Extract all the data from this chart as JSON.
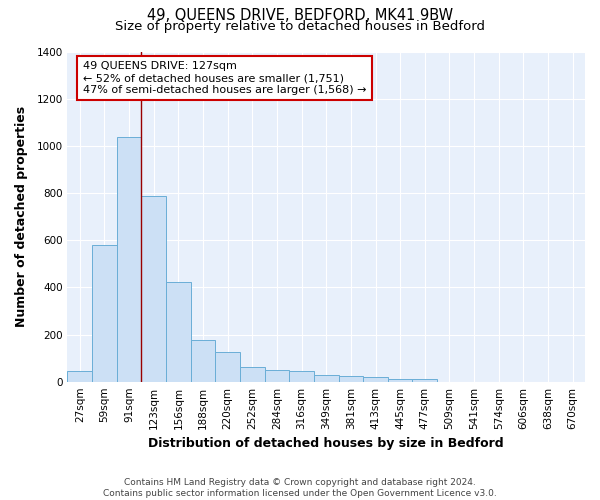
{
  "title": "49, QUEENS DRIVE, BEDFORD, MK41 9BW",
  "subtitle": "Size of property relative to detached houses in Bedford",
  "xlabel": "Distribution of detached houses by size in Bedford",
  "ylabel": "Number of detached properties",
  "categories": [
    "27sqm",
    "59sqm",
    "91sqm",
    "123sqm",
    "156sqm",
    "188sqm",
    "220sqm",
    "252sqm",
    "284sqm",
    "316sqm",
    "349sqm",
    "381sqm",
    "413sqm",
    "445sqm",
    "477sqm",
    "509sqm",
    "541sqm",
    "574sqm",
    "606sqm",
    "638sqm",
    "670sqm"
  ],
  "values": [
    47,
    578,
    1037,
    787,
    422,
    178,
    125,
    62,
    50,
    46,
    30,
    25,
    20,
    12,
    10,
    0,
    0,
    0,
    0,
    0,
    0
  ],
  "bar_color": "#cce0f5",
  "bar_edge_color": "#6aaed6",
  "vline_x_idx": 3,
  "vline_color": "#990000",
  "annotation_text": "49 QUEENS DRIVE: 127sqm\n← 52% of detached houses are smaller (1,751)\n47% of semi-detached houses are larger (1,568) →",
  "annotation_box_color": "white",
  "annotation_box_edge": "#cc0000",
  "ylim": [
    0,
    1400
  ],
  "yticks": [
    0,
    200,
    400,
    600,
    800,
    1000,
    1200,
    1400
  ],
  "bg_color": "#e8f0fb",
  "grid_color": "#ffffff",
  "footer": "Contains HM Land Registry data © Crown copyright and database right 2024.\nContains public sector information licensed under the Open Government Licence v3.0.",
  "title_fontsize": 10.5,
  "subtitle_fontsize": 9.5,
  "axis_label_fontsize": 9,
  "tick_fontsize": 7.5,
  "footer_fontsize": 6.5
}
